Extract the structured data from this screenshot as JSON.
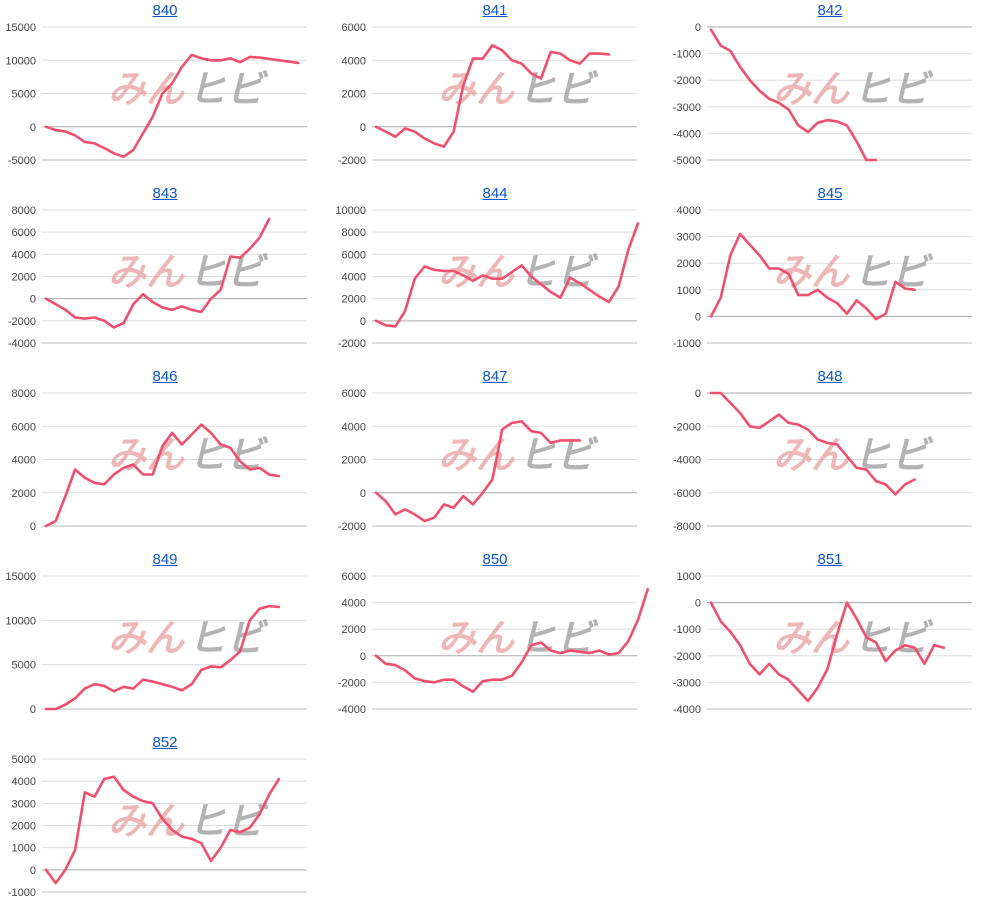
{
  "watermark": {
    "part1": "みん",
    "part2": "ヒビ",
    "color1": "#e8a0a0",
    "color2": "#9a9a9a"
  },
  "line_color": "#f0506e",
  "title_color": "#1155cc",
  "chart_data": [
    {
      "type": "line",
      "title": "840",
      "ylim": [
        -5000,
        15000
      ],
      "yticks": [
        15000,
        10000,
        5000,
        0,
        -5000
      ],
      "values": [
        0,
        -500,
        -700,
        -1300,
        -2300,
        -2500,
        -3200,
        -4000,
        -4500,
        -3500,
        -1000,
        1500,
        5000,
        6500,
        9000,
        10800,
        10300,
        10000,
        10000,
        10300,
        9700,
        10500,
        10400,
        10200,
        10000,
        9800,
        9600
      ]
    },
    {
      "type": "line",
      "title": "841",
      "ylim": [
        -2000,
        6000
      ],
      "yticks": [
        6000,
        4000,
        2000,
        0,
        -2000
      ],
      "values": [
        0,
        -300,
        -600,
        -100,
        -300,
        -700,
        -1000,
        -1200,
        -300,
        2500,
        4100,
        4100,
        4900,
        4600,
        4000,
        3800,
        3200,
        2900,
        4500,
        4400,
        4000,
        3800,
        4400,
        4400,
        4350
      ]
    },
    {
      "type": "line",
      "title": "842",
      "ylim": [
        -5000,
        0
      ],
      "yticks": [
        0,
        -1000,
        -2000,
        -3000,
        -4000,
        -5000
      ],
      "values": [
        -100,
        -700,
        -900,
        -1500,
        -2000,
        -2400,
        -2700,
        -2850,
        -3100,
        -3700,
        -3950,
        -3600,
        -3500,
        -3550,
        -3700,
        -4300,
        -5000,
        -5000
      ]
    },
    {
      "type": "line",
      "title": "843",
      "ylim": [
        -4000,
        8000
      ],
      "yticks": [
        8000,
        6000,
        4000,
        2000,
        0,
        -2000,
        -4000
      ],
      "values": [
        0,
        -500,
        -1000,
        -1700,
        -1800,
        -1700,
        -2000,
        -2600,
        -2200,
        -500,
        400,
        -300,
        -800,
        -1000,
        -700,
        -1000,
        -1200,
        0,
        800,
        3800,
        3700,
        4500,
        5500,
        7200
      ]
    },
    {
      "type": "line",
      "title": "844",
      "ylim": [
        -2000,
        10000
      ],
      "yticks": [
        10000,
        8000,
        6000,
        4000,
        2000,
        0,
        -2000
      ],
      "values": [
        0,
        -400,
        -500,
        900,
        3800,
        4900,
        4600,
        4500,
        4500,
        4100,
        3600,
        4100,
        3800,
        3800,
        4400,
        5000,
        4000,
        3300,
        2600,
        2100,
        3900,
        3400,
        2800,
        2200,
        1700,
        3100,
        6400,
        8800
      ]
    },
    {
      "type": "line",
      "title": "845",
      "ylim": [
        -1000,
        4000
      ],
      "yticks": [
        4000,
        3000,
        2000,
        1000,
        0,
        -1000
      ],
      "values": [
        0,
        700,
        2300,
        3100,
        2700,
        2300,
        1800,
        1800,
        1600,
        800,
        800,
        1000,
        700,
        500,
        100,
        600,
        300,
        -100,
        100,
        1300,
        1050,
        1000
      ]
    },
    {
      "type": "line",
      "title": "846",
      "ylim": [
        0,
        8000
      ],
      "yticks": [
        8000,
        6000,
        4000,
        2000,
        0
      ],
      "values": [
        0,
        300,
        1800,
        3400,
        2900,
        2600,
        2500,
        3100,
        3500,
        3700,
        3100,
        3100,
        4800,
        5600,
        4900,
        5500,
        6100,
        5600,
        4900,
        4700,
        3900,
        3400,
        3500,
        3100,
        3000
      ]
    },
    {
      "type": "line",
      "title": "847",
      "ylim": [
        -2000,
        6000
      ],
      "yticks": [
        6000,
        4000,
        2000,
        0,
        -2000
      ],
      "values": [
        0,
        -500,
        -1300,
        -1000,
        -1300,
        -1700,
        -1500,
        -700,
        -900,
        -200,
        -700,
        0,
        800,
        3800,
        4200,
        4300,
        3700,
        3600,
        3000,
        3150,
        3150,
        3150
      ]
    },
    {
      "type": "line",
      "title": "848",
      "ylim": [
        -8000,
        0
      ],
      "yticks": [
        0,
        -2000,
        -4000,
        -6000,
        -8000
      ],
      "values": [
        0,
        0,
        -600,
        -1200,
        -2000,
        -2100,
        -1700,
        -1300,
        -1800,
        -1900,
        -2200,
        -2800,
        -3000,
        -3100,
        -3800,
        -4500,
        -4600,
        -5300,
        -5500,
        -6100,
        -5500,
        -5200
      ]
    },
    {
      "type": "line",
      "title": "849",
      "ylim": [
        0,
        15000
      ],
      "yticks": [
        15000,
        10000,
        5000,
        0
      ],
      "values": [
        0,
        0,
        500,
        1200,
        2300,
        2800,
        2600,
        2000,
        2500,
        2300,
        3300,
        3100,
        2800,
        2500,
        2100,
        2800,
        4400,
        4800,
        4700,
        5500,
        6500,
        10000,
        11300,
        11600,
        11500
      ]
    },
    {
      "type": "line",
      "title": "850",
      "ylim": [
        -4000,
        6000
      ],
      "yticks": [
        6000,
        4000,
        2000,
        0,
        -2000,
        -4000
      ],
      "values": [
        0,
        -600,
        -700,
        -1100,
        -1700,
        -1900,
        -2000,
        -1800,
        -1800,
        -2300,
        -2700,
        -1900,
        -1800,
        -1800,
        -1500,
        -500,
        800,
        1000,
        400,
        200,
        400,
        300,
        200,
        400,
        100,
        200,
        1100,
        2700,
        5000
      ]
    },
    {
      "type": "line",
      "title": "851",
      "ylim": [
        -4000,
        1000
      ],
      "yticks": [
        1000,
        0,
        -1000,
        -2000,
        -3000,
        -4000
      ],
      "values": [
        0,
        -700,
        -1100,
        -1600,
        -2300,
        -2700,
        -2300,
        -2700,
        -2900,
        -3300,
        -3700,
        -3200,
        -2500,
        -1200,
        0,
        -600,
        -1300,
        -1500,
        -2200,
        -1800,
        -1600,
        -1700,
        -2300,
        -1600,
        -1700
      ]
    },
    {
      "type": "line",
      "title": "852",
      "ylim": [
        -1000,
        5000
      ],
      "yticks": [
        5000,
        4000,
        3000,
        2000,
        1000,
        0,
        -1000
      ],
      "values": [
        0,
        -600,
        0,
        900,
        3500,
        3300,
        4100,
        4200,
        3600,
        3300,
        3100,
        3000,
        2300,
        1800,
        1500,
        1400,
        1200,
        400,
        1000,
        1800,
        1700,
        1900,
        2500,
        3400,
        4100
      ]
    }
  ]
}
